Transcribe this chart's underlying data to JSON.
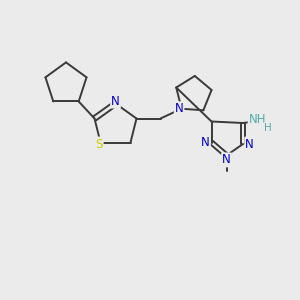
{
  "background_color": "#ebebeb",
  "bond_color": "#3a3a3a",
  "bond_width": 1.4,
  "atom_colors": {
    "N": "#0000cc",
    "S": "#cccc00",
    "H_atom": "#55aaaa",
    "C": "#3a3a3a"
  },
  "font_size_atom": 8.5,
  "font_size_methyl": 7.5
}
